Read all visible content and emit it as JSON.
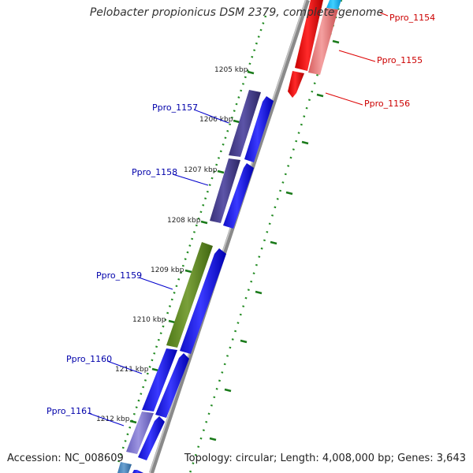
{
  "title": "Pelobacter propionicus DSM 2379, complete genome",
  "footer": {
    "accession": "Accession: NC_008609",
    "summary": "Topology: circular; Length: 4,008,000 bp; Genes: 3,643"
  },
  "ticks": [
    "1205 kbp",
    "1206 kbp",
    "1207 kbp",
    "1208 kbp",
    "1209 kbp",
    "1210 kbp",
    "1211 kbp",
    "1212 kbp"
  ],
  "genes_left": [
    {
      "id": "Ppro_1157",
      "color": "#0000aa"
    },
    {
      "id": "Ppro_1158",
      "color": "#0000aa"
    },
    {
      "id": "Ppro_1159",
      "color": "#0000aa"
    },
    {
      "id": "Ppro_1160",
      "color": "#0000aa"
    },
    {
      "id": "Ppro_1161",
      "color": "#0000aa"
    }
  ],
  "genes_right": [
    {
      "id": "Ppro_1154",
      "color": "#cc0000"
    },
    {
      "id": "Ppro_1155",
      "color": "#cc0000"
    },
    {
      "id": "Ppro_1156",
      "color": "#cc0000"
    }
  ],
  "colors": {
    "forward": "#0000ee",
    "reverse": "#ee0000",
    "dotted_track": "#228b22",
    "backbone": "#888888"
  }
}
